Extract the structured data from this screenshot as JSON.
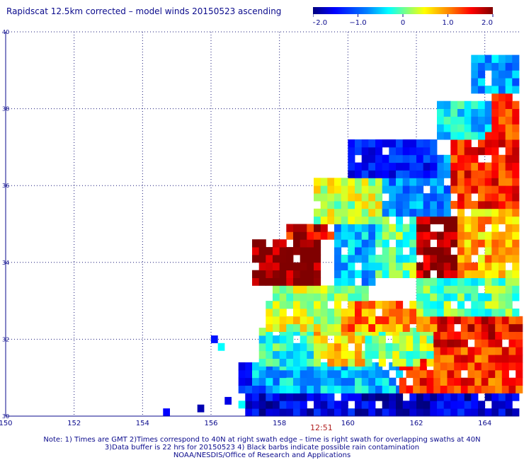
{
  "title": "Rapidscat 12.5km corrected – model winds 20150523 ascending",
  "colorbar": {
    "tick_labels": [
      "−2.0",
      "−1.0",
      "0",
      "1.0",
      "2.0"
    ],
    "tick_values": [
      -2.0,
      -1.0,
      0,
      1.0,
      2.0
    ],
    "range": [
      -2.0,
      2.0
    ]
  },
  "time_label": "12:51",
  "notes": [
    "Note: 1) Times are GMT 2)Times correspond to 40N at right swath edge – time is right swath for overlapping swaths at 40N",
    "3)Data buffer is 22 hrs for 20150523 4) Black barbs indicate possible rain contamination",
    "NOAA/NESDIS/Office of Research and Applications"
  ],
  "chart_data": {
    "type": "heatmap",
    "title": "Rapidscat 12.5km corrected – model winds 20150523 ascending",
    "xlabel": "",
    "ylabel": "",
    "xlim": [
      150,
      165
    ],
    "ylim": [
      30,
      40
    ],
    "x_ticks": [
      150,
      152,
      154,
      156,
      158,
      160,
      162,
      164
    ],
    "y_ticks": [
      30,
      32,
      34,
      36,
      38,
      40
    ],
    "grid": true,
    "colorscale_range": [
      -2.0,
      2.0
    ],
    "regions": [
      {
        "lon_range": [
          157.0,
          165.0
        ],
        "lat_range": [
          30.0,
          30.6
        ],
        "value": -1.6
      },
      {
        "lon_range": [
          156.8,
          158.5
        ],
        "lat_range": [
          30.6,
          31.3
        ],
        "value": -1.2
      },
      {
        "lon_range": [
          157.2,
          161.5
        ],
        "lat_range": [
          30.6,
          31.3
        ],
        "value": -0.5
      },
      {
        "lon_range": [
          161.5,
          165.0
        ],
        "lat_range": [
          30.6,
          31.8
        ],
        "value": 1.3
      },
      {
        "lon_range": [
          157.4,
          159.0
        ],
        "lat_range": [
          31.3,
          32.2
        ],
        "value": -0.2
      },
      {
        "lon_range": [
          159.0,
          160.5
        ],
        "lat_range": [
          31.3,
          32.2
        ],
        "value": 0.6
      },
      {
        "lon_range": [
          160.5,
          162.5
        ],
        "lat_range": [
          31.3,
          32.2
        ],
        "value": 0.2
      },
      {
        "lon_range": [
          162.5,
          165.0
        ],
        "lat_range": [
          31.8,
          32.6
        ],
        "value": 1.5
      },
      {
        "lon_range": [
          157.6,
          159.8
        ],
        "lat_range": [
          32.2,
          33.0
        ],
        "value": 0.4
      },
      {
        "lon_range": [
          159.8,
          162.5
        ],
        "lat_range": [
          32.2,
          33.0
        ],
        "value": 1.0
      },
      {
        "lon_range": [
          157.8,
          160.6
        ],
        "lat_range": [
          33.0,
          33.4
        ],
        "value": 0.2
      },
      {
        "lon_range": [
          162.0,
          165.0
        ],
        "lat_range": [
          32.6,
          33.6
        ],
        "value": 0.0
      },
      {
        "lon_range": [
          157.2,
          159.2
        ],
        "lat_range": [
          33.4,
          34.6
        ],
        "value": 2.0
      },
      {
        "lon_range": [
          158.2,
          159.6
        ],
        "lat_range": [
          34.6,
          35.0
        ],
        "value": 1.6
      },
      {
        "lon_range": [
          159.6,
          160.8
        ],
        "lat_range": [
          33.4,
          35.0
        ],
        "value": -0.6
      },
      {
        "lon_range": [
          160.8,
          162.0
        ],
        "lat_range": [
          33.6,
          35.2
        ],
        "value": 0.0
      },
      {
        "lon_range": [
          162.0,
          163.2
        ],
        "lat_range": [
          33.6,
          35.2
        ],
        "value": 1.9
      },
      {
        "lon_range": [
          163.2,
          165.0
        ],
        "lat_range": [
          33.6,
          35.4
        ],
        "value": 0.8
      },
      {
        "lon_range": [
          159.0,
          161.0
        ],
        "lat_range": [
          35.0,
          36.2
        ],
        "value": 0.3
      },
      {
        "lon_range": [
          161.0,
          163.0
        ],
        "lat_range": [
          35.2,
          36.8
        ],
        "value": -0.8
      },
      {
        "lon_range": [
          163.0,
          165.0
        ],
        "lat_range": [
          35.4,
          37.4
        ],
        "value": 1.4
      },
      {
        "lon_range": [
          160.0,
          162.6
        ],
        "lat_range": [
          36.2,
          37.2
        ],
        "value": -1.3
      },
      {
        "lon_range": [
          162.6,
          164.2
        ],
        "lat_range": [
          37.2,
          38.2
        ],
        "value": -0.4
      },
      {
        "lon_range": [
          164.2,
          165.0
        ],
        "lat_range": [
          37.4,
          38.4
        ],
        "value": 1.2
      },
      {
        "lon_range": [
          163.6,
          165.0
        ],
        "lat_range": [
          38.4,
          39.4
        ],
        "value": -0.7
      }
    ],
    "scattered_points": [
      {
        "lon": 156.2,
        "lat": 31.7,
        "value": -0.3
      },
      {
        "lon": 156.0,
        "lat": 31.9,
        "value": -1.4
      },
      {
        "lon": 156.8,
        "lat": 30.2,
        "value": -0.3
      },
      {
        "lon": 156.4,
        "lat": 30.3,
        "value": -1.6
      },
      {
        "lon": 155.6,
        "lat": 30.1,
        "value": -1.8
      },
      {
        "lon": 154.6,
        "lat": 30.0,
        "value": -1.5
      }
    ]
  }
}
